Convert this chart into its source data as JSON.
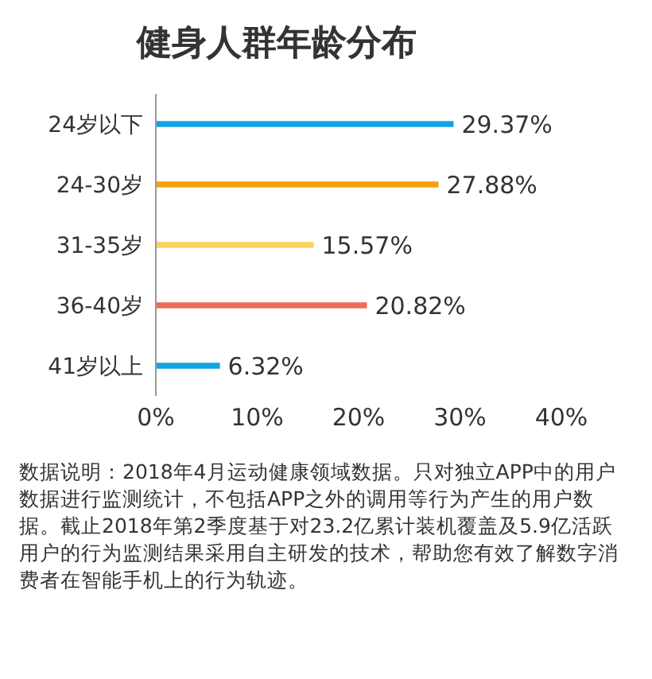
{
  "chart_data": {
    "type": "bar",
    "orientation": "horizontal",
    "title": "健身人群年龄分布",
    "categories": [
      "24岁以下",
      "24-30岁",
      "31-35岁",
      "36-40岁",
      "41岁以上"
    ],
    "values": [
      29.37,
      27.88,
      15.57,
      20.82,
      6.32
    ],
    "colors": [
      "#12a4e4",
      "#f5a10c",
      "#fbd35b",
      "#f2695a",
      "#12a4e4"
    ],
    "value_labels": [
      "29.37%",
      "27.88%",
      "15.57%",
      "20.82%",
      "6.32%"
    ],
    "xlim": [
      0,
      40
    ],
    "xticks": [
      {
        "value": 0,
        "label": "0%"
      },
      {
        "value": 10,
        "label": "10%"
      },
      {
        "value": 20,
        "label": "20%"
      },
      {
        "value": 30,
        "label": "30%"
      },
      {
        "value": 40,
        "label": "40%"
      }
    ],
    "grid": false,
    "legend": false,
    "annotations": [
      "数据说明：2018年4月运动健康领域数据。只对独立APP中的用户数据进行监测统计，不包括APP之外的调用等行为产生的用户数据。截止2018年第2季度基于对23.2亿累计装机覆盖及5.9亿活跃用户的行为监测结果采用自主研发的技术，帮助您有效了解数字消费者在智能手机上的行为轨迹。"
    ]
  }
}
